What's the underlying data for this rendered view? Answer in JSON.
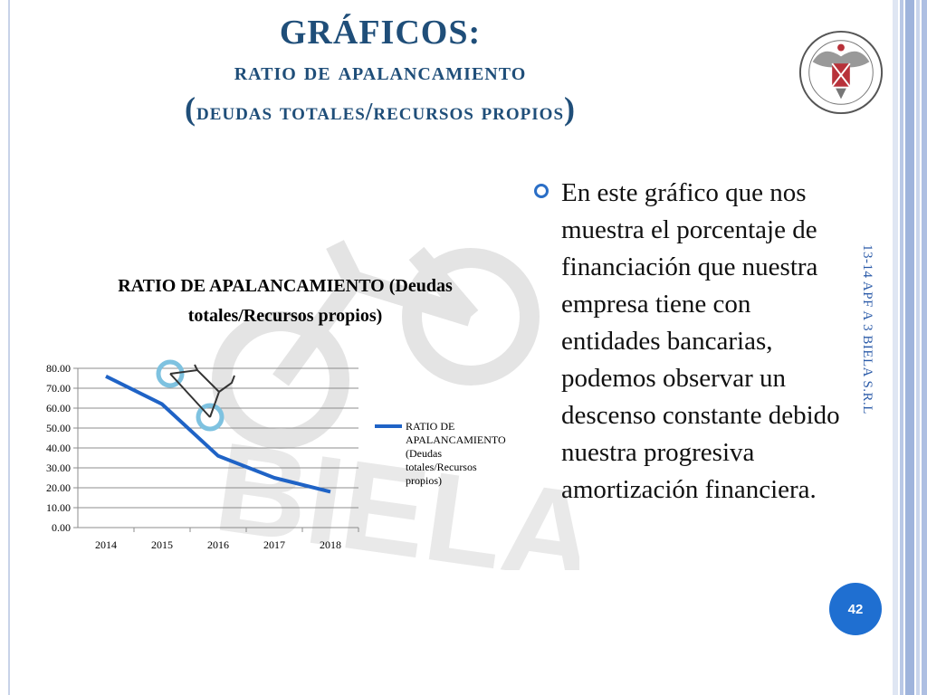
{
  "slide": {
    "title_line1": "GRÁFICOS:",
    "title_line2": "ratio de apalancamiento",
    "title_line3_open": "(",
    "title_line3_text": "deudas totales/recursos propios",
    "title_line3_close": ")",
    "side_label": "13-14 APF A 3 BIELA S.R.L",
    "page_number": "42",
    "bullet_text": "En este gráfico que nos muestra el porcentaje de financiación que nuestra empresa tiene con entidades bancarias, podemos observar un descenso constante debido nuestra progresiva amortización financiera.",
    "watermark_text": "BIELA"
  },
  "chart_data": {
    "type": "line",
    "title": "RATIO DE APALANCAMIENTO (Deudas totales/Recursos propios)",
    "categories": [
      "2014",
      "2015",
      "2016",
      "2017",
      "2018"
    ],
    "series": [
      {
        "name": "RATIO DE APALANCAMIENTO (Deudas totales/Recursos propios)",
        "values": [
          76,
          62,
          36,
          25,
          18
        ],
        "color": "#1f63c6"
      }
    ],
    "y_ticks": [
      "0.00",
      "10.00",
      "20.00",
      "30.00",
      "40.00",
      "50.00",
      "60.00",
      "70.00",
      "80.00"
    ],
    "ylim": [
      0,
      80
    ],
    "grid": true,
    "legend": "right"
  },
  "colors": {
    "title": "#1f4e79",
    "accent": "#1f6fd1",
    "watermark": "#e3e3e3"
  }
}
